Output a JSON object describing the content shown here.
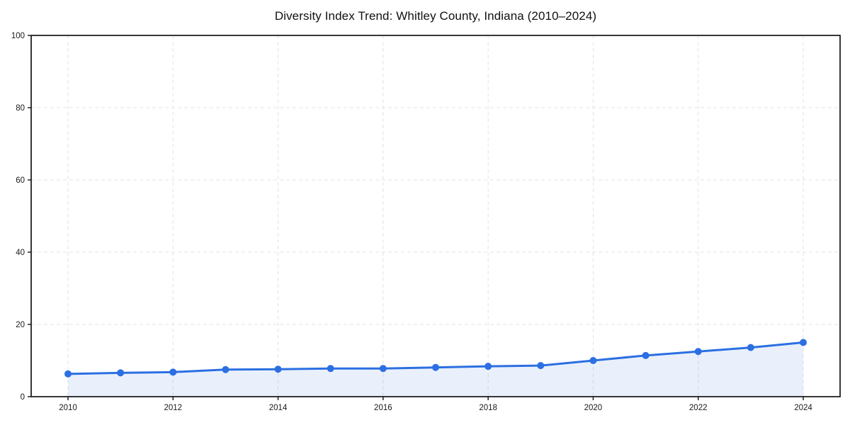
{
  "chart_data": {
    "type": "line",
    "title": "Diversity Index Trend: Whitley County, Indiana (2010–2024)",
    "x": [
      2010,
      2011,
      2012,
      2013,
      2014,
      2015,
      2016,
      2017,
      2018,
      2019,
      2020,
      2021,
      2022,
      2023,
      2024
    ],
    "series": [
      {
        "name": "Diversity Index",
        "values": [
          6.3,
          6.6,
          6.8,
          7.5,
          7.6,
          7.8,
          7.8,
          8.1,
          8.4,
          8.6,
          10.0,
          11.4,
          12.5,
          13.6,
          15.0
        ]
      }
    ],
    "xlabel": "",
    "ylabel": "",
    "ylim": [
      0,
      100
    ],
    "yticks": [
      0,
      20,
      40,
      60,
      80,
      100
    ],
    "xticks": [
      2010,
      2012,
      2014,
      2016,
      2018,
      2020,
      2022,
      2024
    ],
    "grid": true,
    "legend": "none",
    "style": {
      "line_color": "#2b6fe2",
      "marker_color": "#2b6fe2",
      "fill_color": "rgba(43,111,226,0.10)",
      "grid_color": "#e3e3e3",
      "spine_color": "#141414",
      "tick_label_color": "#1a1a1a",
      "background": "#ffffff"
    }
  }
}
